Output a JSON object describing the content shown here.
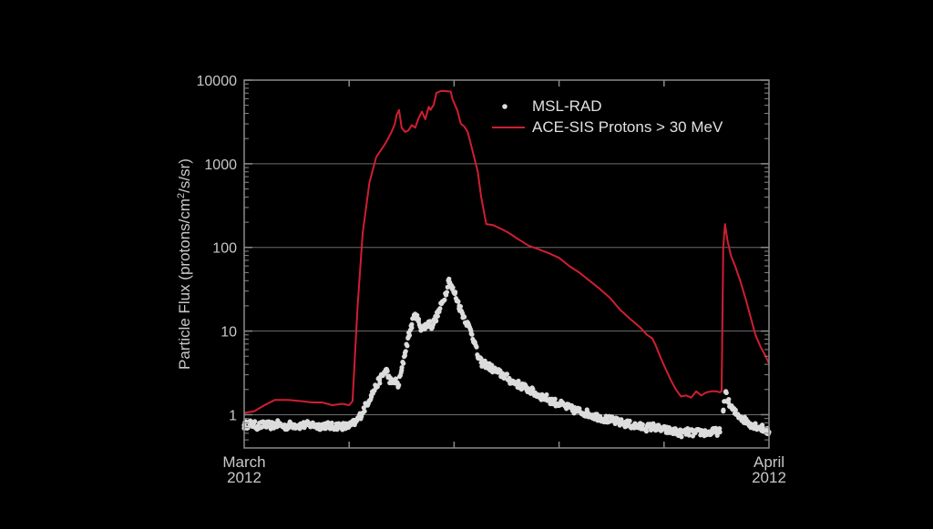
{
  "chart_data": {
    "type": "scatter",
    "title": "",
    "xlabel": "",
    "ylabel": "Particle Flux (protons/cm²/s/sr)",
    "ylabel_parts": {
      "pre": "Particle Flux (protons/cm",
      "sup": "2",
      "post": "/s/sr)"
    },
    "yscale": "log",
    "ylim": [
      0.4,
      10000
    ],
    "xlim": [
      0,
      31
    ],
    "x_unit": "days since March 1, 2012",
    "x_tick_labels": [
      {
        "x": 0,
        "line1": "March",
        "line2": "2012"
      },
      {
        "x": 31,
        "line1": "April",
        "line2": "2012"
      }
    ],
    "x_minor_ticks": [
      6.2,
      12.4,
      18.6,
      24.8
    ],
    "y_ticks": [
      {
        "v": 1,
        "label": "1"
      },
      {
        "v": 10,
        "label": "10"
      },
      {
        "v": 100,
        "label": "100"
      },
      {
        "v": 1000,
        "label": "1000"
      },
      {
        "v": 10000,
        "label": "10000"
      }
    ],
    "grid": true,
    "legend": {
      "placement": "top-right",
      "items": [
        {
          "name": "MSL-RAD",
          "marker": "dot",
          "color": "#dcdcdc"
        },
        {
          "name": "ACE-SIS Protons > 30 MeV",
          "marker": "line",
          "color": "#d01e32"
        }
      ]
    },
    "series": [
      {
        "name": "ACE-SIS Protons > 30 MeV",
        "kind": "line",
        "color": "#d01e32",
        "points": [
          [
            0.0,
            1.05
          ],
          [
            0.6,
            1.1
          ],
          [
            1.2,
            1.3
          ],
          [
            1.8,
            1.5
          ],
          [
            2.6,
            1.5
          ],
          [
            3.4,
            1.45
          ],
          [
            4.0,
            1.4
          ],
          [
            4.6,
            1.4
          ],
          [
            5.2,
            1.3
          ],
          [
            5.8,
            1.35
          ],
          [
            6.2,
            1.3
          ],
          [
            6.4,
            1.45
          ],
          [
            6.7,
            20
          ],
          [
            7.0,
            150
          ],
          [
            7.4,
            600
          ],
          [
            7.8,
            1200
          ],
          [
            8.3,
            1700
          ],
          [
            8.5,
            2000
          ],
          [
            8.7,
            2400
          ],
          [
            8.9,
            3000
          ],
          [
            9.0,
            3800
          ],
          [
            9.15,
            4400
          ],
          [
            9.3,
            2700
          ],
          [
            9.5,
            2400
          ],
          [
            9.7,
            2500
          ],
          [
            9.9,
            2900
          ],
          [
            10.1,
            2700
          ],
          [
            10.3,
            3500
          ],
          [
            10.5,
            4200
          ],
          [
            10.7,
            3400
          ],
          [
            10.9,
            4800
          ],
          [
            11.0,
            4400
          ],
          [
            11.2,
            5100
          ],
          [
            11.35,
            7000
          ],
          [
            11.6,
            7400
          ],
          [
            11.9,
            7400
          ],
          [
            12.2,
            7300
          ],
          [
            12.3,
            6000
          ],
          [
            12.6,
            4300
          ],
          [
            12.8,
            3000
          ],
          [
            13.0,
            2800
          ],
          [
            13.2,
            2400
          ],
          [
            13.5,
            1400
          ],
          [
            13.8,
            800
          ],
          [
            14.0,
            400
          ],
          [
            14.3,
            190
          ],
          [
            14.7,
            185
          ],
          [
            15.1,
            170
          ],
          [
            15.6,
            150
          ],
          [
            16.2,
            125
          ],
          [
            16.8,
            105
          ],
          [
            17.4,
            95
          ],
          [
            18.0,
            85
          ],
          [
            18.6,
            75
          ],
          [
            19.2,
            60
          ],
          [
            19.8,
            50
          ],
          [
            20.4,
            40
          ],
          [
            21.0,
            32
          ],
          [
            21.6,
            25
          ],
          [
            22.2,
            18
          ],
          [
            22.8,
            14
          ],
          [
            23.4,
            11
          ],
          [
            23.8,
            9
          ],
          [
            24.1,
            8.2
          ],
          [
            24.3,
            6.8
          ],
          [
            24.6,
            4.8
          ],
          [
            24.9,
            3.5
          ],
          [
            25.2,
            2.6
          ],
          [
            25.5,
            2.0
          ],
          [
            25.8,
            1.65
          ],
          [
            26.1,
            1.7
          ],
          [
            26.4,
            1.6
          ],
          [
            26.7,
            1.9
          ],
          [
            27.0,
            1.7
          ],
          [
            27.3,
            1.85
          ],
          [
            27.6,
            1.9
          ],
          [
            27.9,
            1.9
          ],
          [
            28.1,
            1.85
          ],
          [
            28.2,
            1.9
          ],
          [
            28.3,
            100
          ],
          [
            28.4,
            190
          ],
          [
            28.55,
            120
          ],
          [
            28.75,
            80
          ],
          [
            29.0,
            60
          ],
          [
            29.3,
            40
          ],
          [
            29.6,
            25
          ],
          [
            29.9,
            15
          ],
          [
            30.2,
            9
          ],
          [
            30.5,
            6.5
          ],
          [
            30.8,
            5
          ],
          [
            31.0,
            4.1
          ]
        ]
      },
      {
        "name": "MSL-RAD",
        "kind": "scatter",
        "color": "#dcdcdc",
        "points": [
          [
            0.0,
            0.75
          ],
          [
            0.4,
            0.78
          ],
          [
            0.8,
            0.73
          ],
          [
            1.2,
            0.76
          ],
          [
            1.6,
            0.74
          ],
          [
            2.0,
            0.77
          ],
          [
            2.4,
            0.72
          ],
          [
            2.8,
            0.76
          ],
          [
            3.2,
            0.74
          ],
          [
            3.6,
            0.75
          ],
          [
            4.0,
            0.76
          ],
          [
            4.4,
            0.73
          ],
          [
            4.8,
            0.75
          ],
          [
            5.2,
            0.72
          ],
          [
            5.6,
            0.74
          ],
          [
            6.0,
            0.72
          ],
          [
            6.3,
            0.75
          ],
          [
            6.6,
            0.82
          ],
          [
            6.9,
            1.0
          ],
          [
            7.2,
            1.3
          ],
          [
            7.5,
            1.7
          ],
          [
            7.8,
            2.2
          ],
          [
            8.0,
            2.6
          ],
          [
            8.2,
            3.0
          ],
          [
            8.4,
            3.5
          ],
          [
            8.5,
            2.9
          ],
          [
            8.7,
            2.4
          ],
          [
            8.9,
            2.6
          ],
          [
            9.1,
            2.2
          ],
          [
            9.3,
            3.4
          ],
          [
            9.5,
            5.5
          ],
          [
            9.7,
            8.5
          ],
          [
            9.9,
            12
          ],
          [
            10.1,
            16
          ],
          [
            10.3,
            13
          ],
          [
            10.5,
            10.5
          ],
          [
            10.7,
            11.5
          ],
          [
            10.9,
            12.5
          ],
          [
            11.1,
            11.5
          ],
          [
            11.3,
            14
          ],
          [
            11.5,
            17
          ],
          [
            11.7,
            22
          ],
          [
            11.9,
            28
          ],
          [
            12.1,
            42
          ],
          [
            12.25,
            33
          ],
          [
            12.45,
            28
          ],
          [
            12.7,
            20
          ],
          [
            12.9,
            16
          ],
          [
            13.2,
            12
          ],
          [
            13.4,
            10
          ],
          [
            13.6,
            7.5
          ],
          [
            13.8,
            5
          ],
          [
            14.0,
            4.2
          ],
          [
            14.3,
            4.0
          ],
          [
            14.6,
            3.6
          ],
          [
            15.0,
            3.2
          ],
          [
            15.4,
            2.9
          ],
          [
            15.8,
            2.5
          ],
          [
            16.2,
            2.3
          ],
          [
            16.6,
            2.1
          ],
          [
            17.0,
            1.9
          ],
          [
            17.4,
            1.7
          ],
          [
            17.8,
            1.6
          ],
          [
            18.2,
            1.45
          ],
          [
            18.6,
            1.35
          ],
          [
            19.0,
            1.25
          ],
          [
            19.4,
            1.15
          ],
          [
            19.8,
            1.1
          ],
          [
            20.2,
            1.05
          ],
          [
            20.6,
            0.98
          ],
          [
            21.0,
            0.93
          ],
          [
            21.4,
            0.88
          ],
          [
            21.8,
            0.85
          ],
          [
            22.2,
            0.8
          ],
          [
            22.6,
            0.78
          ],
          [
            23.0,
            0.74
          ],
          [
            23.4,
            0.72
          ],
          [
            23.8,
            0.7
          ],
          [
            24.2,
            0.72
          ],
          [
            24.6,
            0.67
          ],
          [
            25.0,
            0.65
          ],
          [
            25.4,
            0.63
          ],
          [
            25.8,
            0.6
          ],
          [
            26.2,
            0.62
          ],
          [
            26.6,
            0.6
          ],
          [
            27.0,
            0.62
          ],
          [
            27.4,
            0.6
          ],
          [
            27.8,
            0.63
          ],
          [
            28.1,
            0.62
          ],
          [
            28.3,
            1.1
          ],
          [
            28.45,
            1.9
          ],
          [
            28.6,
            1.4
          ],
          [
            28.8,
            1.2
          ],
          [
            29.0,
            1.05
          ],
          [
            29.3,
            0.95
          ],
          [
            29.6,
            0.85
          ],
          [
            29.9,
            0.78
          ],
          [
            30.2,
            0.74
          ],
          [
            30.5,
            0.7
          ],
          [
            30.8,
            0.66
          ],
          [
            31.0,
            0.62
          ]
        ]
      }
    ]
  }
}
